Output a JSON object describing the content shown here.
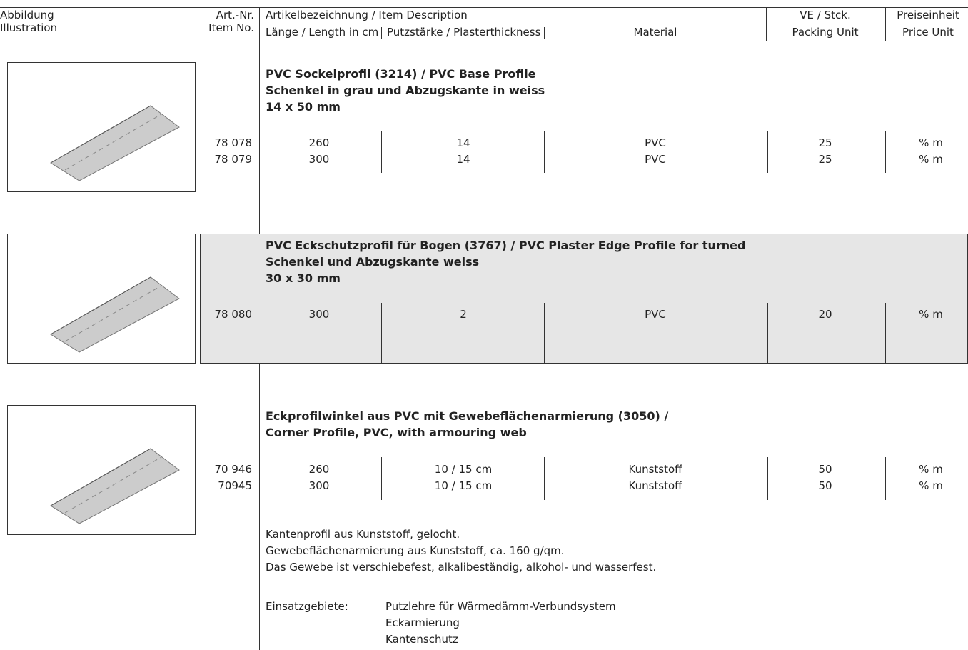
{
  "header": {
    "illustration": [
      "Abbildung",
      "Illustration"
    ],
    "item_no": [
      "Art.-Nr.",
      "Item No."
    ],
    "description": "Artikelbezeichnung / Item Description",
    "length": "Länge / Length in cm",
    "plaster": "Putzstärke / Plasterthickness",
    "material": "Material",
    "packing": [
      "VE / Stck.",
      "Packing Unit"
    ],
    "price": [
      "Preiseinheit",
      "Price Unit"
    ]
  },
  "products": [
    {
      "title": [
        "PVC Sockelprofil (3214) / PVC Base Profile",
        "Schenkel in grau und Abzugskante in weiss",
        "14 x 50 mm"
      ],
      "rows": [
        {
          "item": "78 078",
          "length": "260",
          "plaster": "14",
          "material": "PVC",
          "packing": "25",
          "price": "% m"
        },
        {
          "item": "78 079",
          "length": "300",
          "plaster": "14",
          "material": "PVC",
          "packing": "25",
          "price": "% m"
        }
      ]
    },
    {
      "title": [
        "PVC Eckschutzprofil für Bogen (3767) / PVC Plaster Edge Profile for turned",
        "Schenkel und Abzugskante weiss",
        "30 x 30 mm"
      ],
      "rows": [
        {
          "item": "78 080",
          "length": "300",
          "plaster": "2",
          "material": "PVC",
          "packing": "20",
          "price": "% m"
        }
      ]
    },
    {
      "title": [
        "Eckprofilwinkel aus PVC mit Gewebeflächenarmierung (3050) /",
        "Corner Profile, PVC, with armouring web"
      ],
      "rows": [
        {
          "item": "70 946",
          "length": "260",
          "plaster": "10 / 15 cm",
          "material": "Kunststoff",
          "packing": "50",
          "price": "% m"
        },
        {
          "item": "70945",
          "length": "300",
          "plaster": "10 / 15 cm",
          "material": "Kunststoff",
          "packing": "50",
          "price": "% m"
        }
      ]
    }
  ],
  "notes": [
    "Kantenprofil aus Kunststoff, gelocht.",
    "Gewebeflächenarmierung aus Kunststoff, ca. 160 g/qm.",
    "Das Gewebe ist verschiebefest, alkalibeständig, alkohol- und wasserfest."
  ],
  "usage": {
    "label": "Einsatzgebiete:",
    "items": [
      "Putzlehre für Wärmedämm-Verbundsystem",
      "Eckarmierung",
      "Kantenschutz"
    ]
  }
}
